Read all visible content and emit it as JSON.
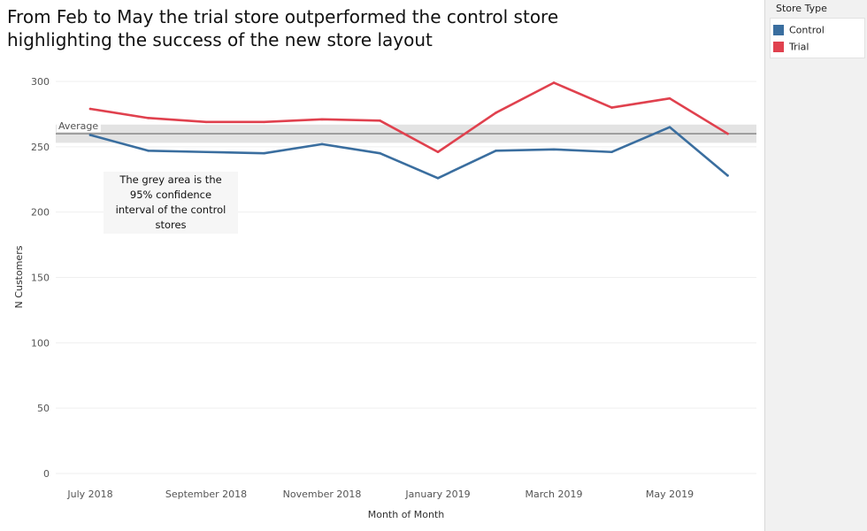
{
  "title_lines": [
    "From Feb to May the trial store outperformed the control store",
    "highlighting the success of the new store layout"
  ],
  "annotation_lines": [
    "The grey area is the",
    "95% confidence",
    "interval of the control",
    "stores"
  ],
  "legend": {
    "title": "Store Type",
    "items": [
      {
        "label": "Control",
        "color": "#3a6e9f"
      },
      {
        "label": "Trial",
        "color": "#e0414e"
      }
    ]
  },
  "chart_data": {
    "type": "line",
    "title": "From Feb to May the trial store outperformed the control store highlighting the success of the new store layout",
    "xlabel": "Month of Month",
    "ylabel": "N Customers",
    "ylim": [
      0,
      300
    ],
    "yticks": [
      0,
      50,
      100,
      150,
      200,
      250,
      300
    ],
    "x": [
      "2018-07",
      "2018-08",
      "2018-09",
      "2018-10",
      "2018-11",
      "2018-12",
      "2019-01",
      "2019-02",
      "2019-03",
      "2019-04",
      "2019-05",
      "2019-06"
    ],
    "xtick_labels": [
      {
        "x": "2018-07",
        "label": "July 2018"
      },
      {
        "x": "2018-09",
        "label": "September 2018"
      },
      {
        "x": "2018-11",
        "label": "November 2018"
      },
      {
        "x": "2019-01",
        "label": "January 2019"
      },
      {
        "x": "2019-03",
        "label": "March 2019"
      },
      {
        "x": "2019-05",
        "label": "May 2019"
      }
    ],
    "series": [
      {
        "name": "Control",
        "color": "#3a6e9f",
        "values": [
          259,
          247,
          246,
          245,
          252,
          245,
          226,
          247,
          248,
          246,
          265,
          228
        ]
      },
      {
        "name": "Trial",
        "color": "#e0414e",
        "values": [
          279,
          272,
          269,
          269,
          271,
          270,
          246,
          276,
          299,
          280,
          287,
          260
        ]
      }
    ],
    "reference_line": {
      "label": "Average",
      "value": 260,
      "color": "#808080"
    },
    "confidence_band": {
      "lower": 253,
      "upper": 267,
      "color": "#e3e3e3"
    },
    "grid": true,
    "legend_position": "right"
  }
}
